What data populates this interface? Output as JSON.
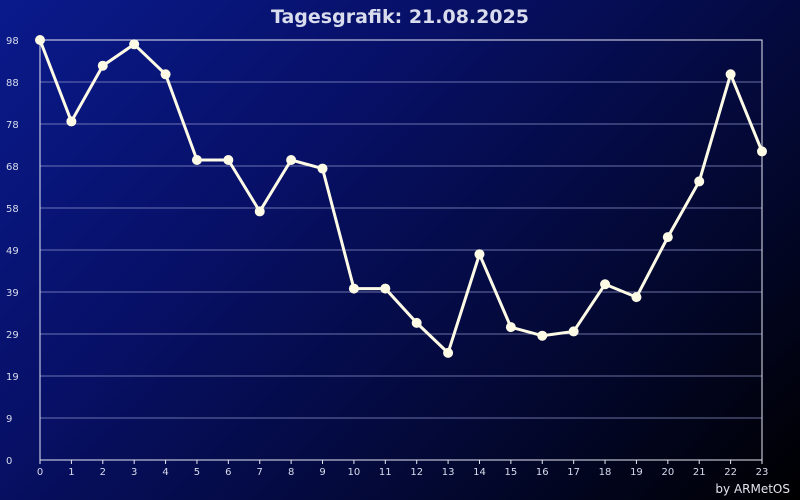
{
  "chart_data": {
    "type": "line",
    "title": "Tagesgrafik: 21.08.2025",
    "x": [
      0,
      1,
      2,
      3,
      4,
      5,
      6,
      7,
      8,
      9,
      10,
      11,
      12,
      13,
      14,
      15,
      16,
      17,
      18,
      19,
      20,
      21,
      22,
      23
    ],
    "series": [
      {
        "values": [
          98,
          79,
          92,
          97,
          90,
          70,
          70,
          58,
          70,
          68,
          40,
          40,
          32,
          25,
          48,
          31,
          29,
          30,
          41,
          38,
          52,
          65,
          90,
          72
        ]
      }
    ],
    "yticks": [
      "0",
      "9",
      "19",
      "29",
      "39",
      "49",
      "58",
      "68",
      "78",
      "88",
      "98"
    ],
    "ylim": [
      0,
      98
    ],
    "xlim": [
      0,
      23
    ],
    "grid": true,
    "colors": {
      "line": "#fdfbe6",
      "grid": "#8c93c8",
      "axis": "#e6e8f4"
    }
  },
  "footer": {
    "credit": "by ARMetOS"
  }
}
